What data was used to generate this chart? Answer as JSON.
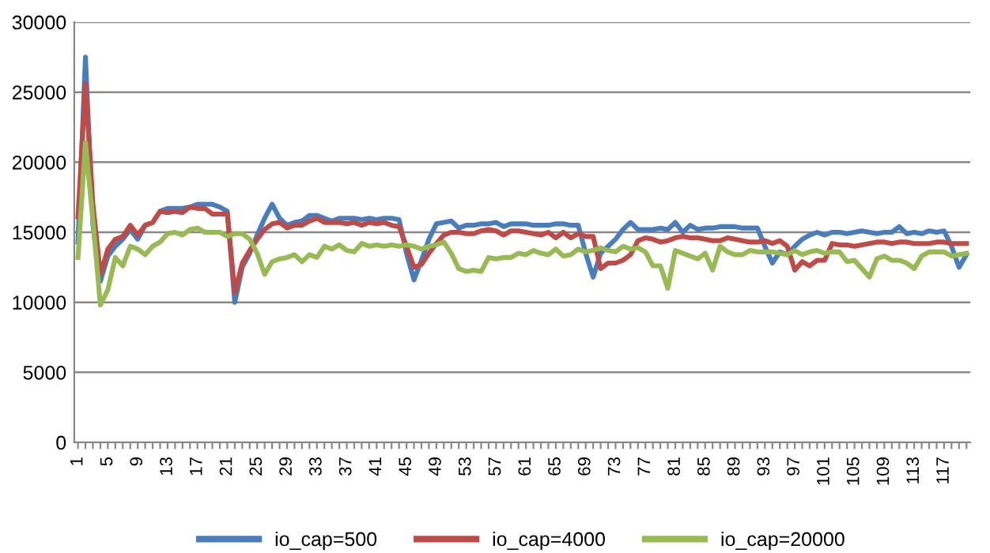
{
  "chart_data": {
    "type": "line",
    "categories": [
      "1",
      null,
      null,
      null,
      "5",
      null,
      null,
      null,
      "9",
      null,
      null,
      null,
      "13",
      null,
      null,
      null,
      "17",
      null,
      null,
      null,
      "21",
      null,
      null,
      null,
      "25",
      null,
      null,
      null,
      "29",
      null,
      null,
      null,
      "33",
      null,
      null,
      null,
      "37",
      null,
      null,
      null,
      "41",
      null,
      null,
      null,
      "45",
      null,
      null,
      null,
      "49",
      null,
      null,
      null,
      "53",
      null,
      null,
      null,
      "57",
      null,
      null,
      null,
      "61",
      null,
      null,
      null,
      "65",
      null,
      null,
      null,
      "69",
      null,
      null,
      null,
      "73",
      null,
      null,
      null,
      "77",
      null,
      null,
      null,
      "81",
      null,
      null,
      null,
      "85",
      null,
      null,
      null,
      "89",
      null,
      null,
      null,
      "93",
      null,
      null,
      null,
      "97",
      null,
      null,
      null,
      "101",
      null,
      null,
      null,
      "105",
      null,
      null,
      null,
      "109",
      null,
      null,
      null,
      "113",
      null,
      null,
      null,
      "117",
      null,
      null,
      null
    ],
    "series": [
      {
        "name": "io_cap=500",
        "color": "#4a7ebb",
        "values": [
          14300,
          27500,
          15500,
          11500,
          13300,
          14000,
          14500,
          15200,
          14500,
          15500,
          15700,
          16500,
          16700,
          16700,
          16700,
          16800,
          17000,
          17000,
          17000,
          16800,
          16500,
          10000,
          12500,
          13500,
          14800,
          16000,
          17000,
          16000,
          15500,
          15700,
          15800,
          16200,
          16200,
          16000,
          15800,
          16000,
          16000,
          16000,
          15900,
          16000,
          15900,
          16000,
          16000,
          15900,
          13500,
          11600,
          13000,
          14500,
          15600,
          15700,
          15800,
          15300,
          15500,
          15500,
          15600,
          15600,
          15700,
          15400,
          15600,
          15600,
          15600,
          15500,
          15500,
          15500,
          15600,
          15600,
          15500,
          15500,
          13500,
          11800,
          13500,
          14000,
          14500,
          15200,
          15700,
          15200,
          15200,
          15200,
          15300,
          15200,
          15700,
          15000,
          15500,
          15200,
          15300,
          15300,
          15400,
          15400,
          15400,
          15300,
          15300,
          15300,
          14000,
          12800,
          13600,
          13400,
          14000,
          14500,
          14800,
          15000,
          14800,
          15000,
          15000,
          14900,
          15000,
          15100,
          15000,
          14900,
          15000,
          15000,
          15400,
          14900,
          15000,
          14900,
          15100,
          15000,
          15100,
          14000,
          12500,
          13400
        ]
      },
      {
        "name": "io_cap=4000",
        "color": "#be4b48",
        "values": [
          16100,
          25600,
          17000,
          12000,
          13800,
          14500,
          14700,
          15500,
          14800,
          15500,
          15700,
          16500,
          16400,
          16500,
          16400,
          16800,
          16700,
          16700,
          16300,
          16300,
          16300,
          10700,
          12800,
          13700,
          14500,
          15200,
          15600,
          15700,
          15300,
          15500,
          15500,
          15800,
          16000,
          15700,
          15700,
          15700,
          15600,
          15700,
          15500,
          15700,
          15600,
          15700,
          15500,
          15400,
          14000,
          12500,
          12700,
          13500,
          14200,
          14800,
          15000,
          15000,
          14900,
          14900,
          15100,
          15200,
          15100,
          14800,
          15100,
          15100,
          15000,
          14900,
          14800,
          15000,
          14600,
          15000,
          14600,
          14900,
          14700,
          14700,
          12400,
          12800,
          12800,
          13000,
          13400,
          14400,
          14600,
          14500,
          14300,
          14400,
          14600,
          14700,
          14600,
          14600,
          14500,
          14400,
          14400,
          14600,
          14500,
          14400,
          14300,
          14300,
          14400,
          14200,
          14400,
          14000,
          12300,
          12900,
          12600,
          13000,
          13000,
          14200,
          14100,
          14100,
          14000,
          14100,
          14200,
          14300,
          14300,
          14200,
          14300,
          14300,
          14200,
          14200,
          14200,
          14300,
          14300,
          14200,
          14200,
          14200
        ]
      },
      {
        "name": "io_cap=20000",
        "color": "#98b954",
        "values": [
          13200,
          21400,
          15800,
          9800,
          10900,
          13200,
          12600,
          14000,
          13800,
          13400,
          14000,
          14300,
          14900,
          15000,
          14800,
          15200,
          15300,
          15000,
          15000,
          15000,
          14700,
          14900,
          14900,
          14500,
          13500,
          12000,
          12900,
          13100,
          13200,
          13400,
          12900,
          13400,
          13200,
          14000,
          13800,
          14100,
          13700,
          13600,
          14200,
          14000,
          14100,
          14000,
          14100,
          14000,
          14100,
          14000,
          13800,
          14000,
          14100,
          14300,
          13500,
          12400,
          12200,
          12300,
          12200,
          13200,
          13100,
          13200,
          13200,
          13500,
          13400,
          13700,
          13500,
          13400,
          13800,
          13300,
          13400,
          13800,
          13600,
          13700,
          13900,
          13700,
          13600,
          14000,
          13800,
          13900,
          13600,
          12600,
          12600,
          11000,
          13700,
          13500,
          13300,
          13100,
          13500,
          12300,
          14000,
          13600,
          13400,
          13400,
          13700,
          13600,
          13600,
          13600,
          13500,
          13400,
          13700,
          13400,
          13600,
          13700,
          13500,
          13600,
          13600,
          12900,
          13000,
          12400,
          11800,
          13100,
          13300,
          13000,
          13000,
          12800,
          12400,
          13300,
          13600,
          13600,
          13600,
          13300,
          13400,
          13500
        ]
      }
    ],
    "ylim": [
      0,
      30000
    ],
    "yticks": [
      0,
      5000,
      10000,
      15000,
      20000,
      25000,
      30000
    ],
    "grid": "y",
    "legend": "bottom",
    "marker": "none",
    "line_style": "solid"
  }
}
